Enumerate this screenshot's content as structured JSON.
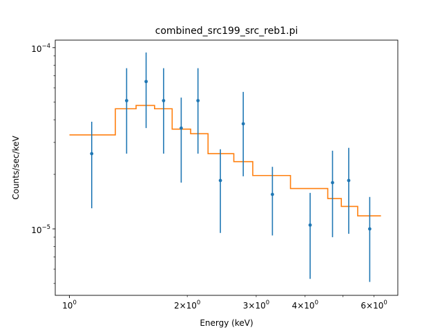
{
  "chart_data": {
    "type": "scatter",
    "title": "combined_src199_src_reb1.pi",
    "xlabel": "Energy (keV)",
    "ylabel": "Counts/sec/keV",
    "xscale": "log",
    "yscale": "log",
    "xlim": [
      0.92,
      6.9
    ],
    "ylim": [
      4.3e-06,
      0.00011
    ],
    "grid": false,
    "x_major_ticks": [
      {
        "value": 1,
        "base": "10",
        "exp": "0"
      }
    ],
    "x_minor_tick_values": [
      2,
      3,
      4,
      5,
      6
    ],
    "x_minor_tick_labels": [
      {
        "value": 2,
        "mantissa": "2",
        "base": "10",
        "exp": "0"
      },
      {
        "value": 3,
        "mantissa": "3",
        "base": "10",
        "exp": "0"
      },
      {
        "value": 4,
        "mantissa": "4",
        "base": "10",
        "exp": "0"
      },
      {
        "value": 6,
        "mantissa": "6",
        "base": "10",
        "exp": "0"
      }
    ],
    "y_major_ticks": [
      {
        "value": 1e-05,
        "base": "10",
        "exp": "−5"
      },
      {
        "value": 0.0001,
        "base": "10",
        "exp": "−4"
      }
    ],
    "y_minor_tick_values": [
      5e-06,
      6e-06,
      7e-06,
      8e-06,
      9e-06,
      2e-05,
      3e-05,
      4e-05,
      5e-05,
      6e-05,
      7e-05,
      8e-05,
      9e-05
    ],
    "data_points": {
      "color": "#1f77b4",
      "points": [
        {
          "x": 1.14,
          "y": 2.6e-05,
          "ylo": 1.3e-05,
          "yhi": 3.9e-05
        },
        {
          "x": 1.4,
          "y": 5.1e-05,
          "ylo": 2.6e-05,
          "yhi": 7.7e-05
        },
        {
          "x": 1.57,
          "y": 6.5e-05,
          "ylo": 3.6e-05,
          "yhi": 9.4e-05
        },
        {
          "x": 1.74,
          "y": 5.1e-05,
          "ylo": 2.6e-05,
          "yhi": 7.7e-05
        },
        {
          "x": 1.93,
          "y": 3.6e-05,
          "ylo": 1.8e-05,
          "yhi": 5.3e-05
        },
        {
          "x": 2.13,
          "y": 5.1e-05,
          "ylo": 2.6e-05,
          "yhi": 7.7e-05
        },
        {
          "x": 2.43,
          "y": 1.85e-05,
          "ylo": 9.5e-06,
          "yhi": 2.75e-05
        },
        {
          "x": 2.78,
          "y": 3.8e-05,
          "ylo": 1.95e-05,
          "yhi": 5.7e-05
        },
        {
          "x": 3.3,
          "y": 1.55e-05,
          "ylo": 9.2e-06,
          "yhi": 2.2e-05
        },
        {
          "x": 4.12,
          "y": 1.05e-05,
          "ylo": 5.3e-06,
          "yhi": 1.58e-05
        },
        {
          "x": 4.7,
          "y": 1.8e-05,
          "ylo": 9e-06,
          "yhi": 2.7e-05
        },
        {
          "x": 5.17,
          "y": 1.85e-05,
          "ylo": 9.4e-06,
          "yhi": 2.8e-05
        },
        {
          "x": 5.85,
          "y": 1e-05,
          "ylo": 5.1e-06,
          "yhi": 1.5e-05
        }
      ]
    },
    "model": {
      "color": "#ff7f0e",
      "steps": [
        {
          "x0": 1.0,
          "x1": 1.31,
          "y": 3.3e-05
        },
        {
          "x0": 1.31,
          "x1": 1.48,
          "y": 4.6e-05
        },
        {
          "x0": 1.48,
          "x1": 1.65,
          "y": 4.8e-05
        },
        {
          "x0": 1.65,
          "x1": 1.83,
          "y": 4.6e-05
        },
        {
          "x0": 1.83,
          "x1": 2.04,
          "y": 3.55e-05
        },
        {
          "x0": 2.04,
          "x1": 2.26,
          "y": 3.35e-05
        },
        {
          "x0": 2.26,
          "x1": 2.63,
          "y": 2.6e-05
        },
        {
          "x0": 2.63,
          "x1": 2.94,
          "y": 2.35e-05
        },
        {
          "x0": 2.94,
          "x1": 3.67,
          "y": 1.97e-05
        },
        {
          "x0": 3.67,
          "x1": 4.57,
          "y": 1.67e-05
        },
        {
          "x0": 4.57,
          "x1": 4.95,
          "y": 1.47e-05
        },
        {
          "x0": 4.95,
          "x1": 5.45,
          "y": 1.33e-05
        },
        {
          "x0": 5.45,
          "x1": 6.25,
          "y": 1.18e-05
        }
      ]
    }
  }
}
